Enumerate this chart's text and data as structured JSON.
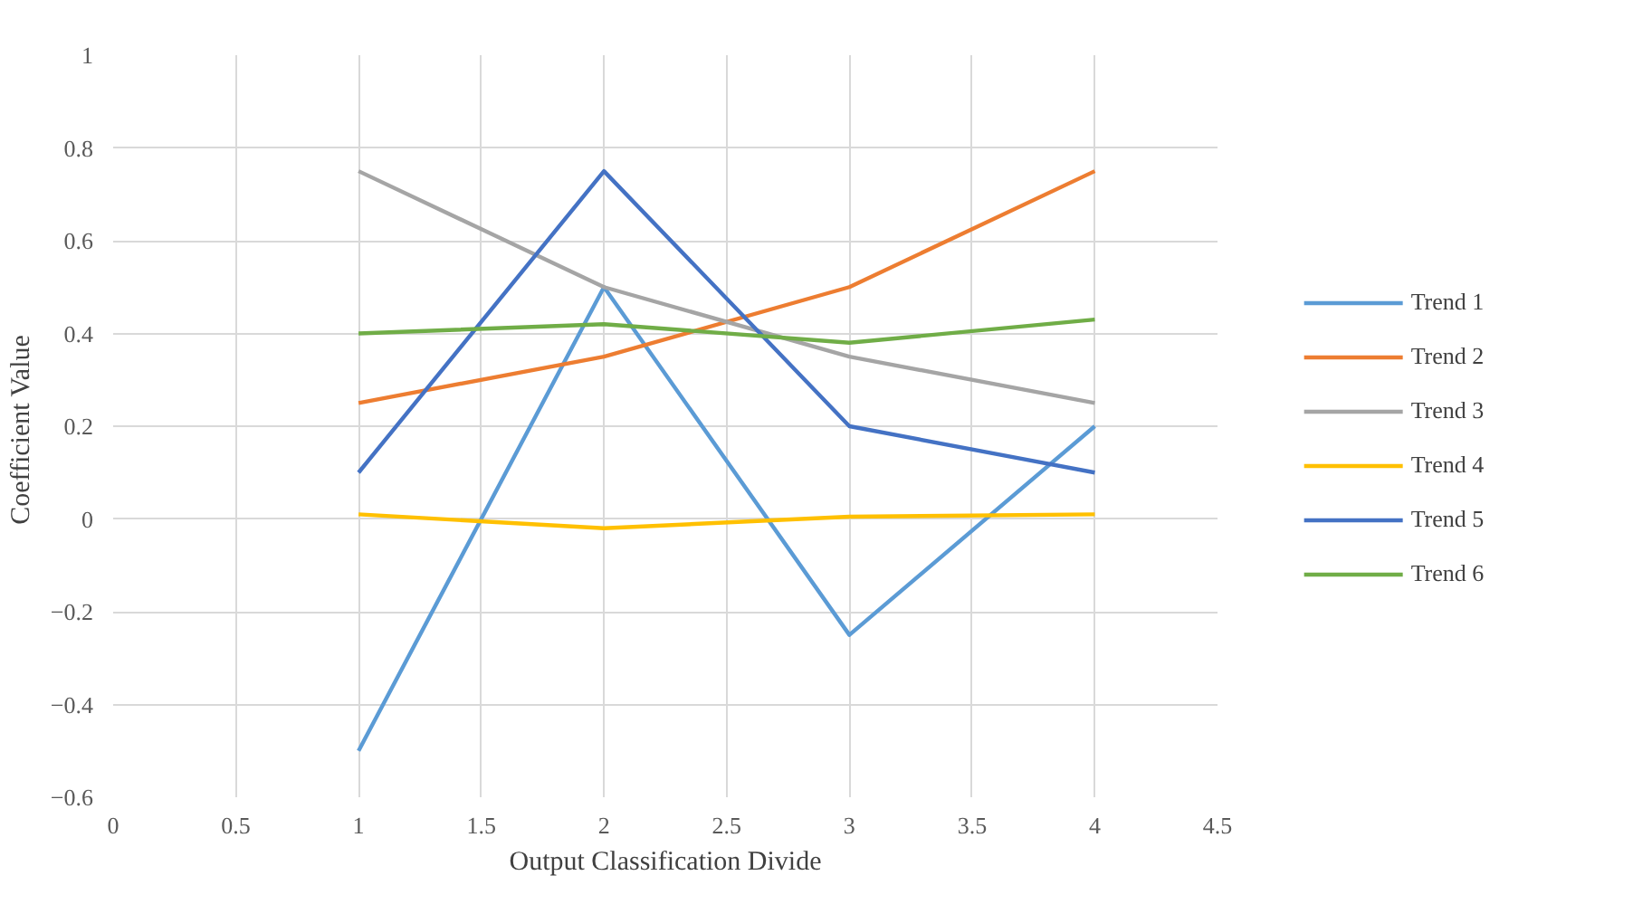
{
  "chart_data": {
    "type": "line",
    "xlabel": "Output Classification Divide",
    "ylabel": "Coefficient  Value",
    "x": [
      1,
      2,
      3,
      4
    ],
    "series": [
      {
        "name": "Trend 1",
        "color": "#5b9bd5",
        "values": [
          -0.5,
          0.5,
          -0.25,
          0.2
        ]
      },
      {
        "name": "Trend 2",
        "color": "#ed7d31",
        "values": [
          0.25,
          0.35,
          0.5,
          0.75
        ]
      },
      {
        "name": "Trend 3",
        "color": "#a5a5a5",
        "values": [
          0.75,
          0.5,
          0.35,
          0.25
        ]
      },
      {
        "name": "Trend 4",
        "color": "#ffc000",
        "values": [
          0.01,
          -0.02,
          0.005,
          0.01
        ]
      },
      {
        "name": "Trend 5",
        "color": "#4472c4",
        "values": [
          0.1,
          0.75,
          0.2,
          0.1
        ]
      },
      {
        "name": "Trend 6",
        "color": "#70ad47",
        "values": [
          0.4,
          0.42,
          0.38,
          0.43
        ]
      }
    ],
    "xlim": [
      0,
      4.5
    ],
    "xticks": [
      0,
      0.5,
      1,
      1.5,
      2,
      2.5,
      3,
      3.5,
      4,
      4.5
    ],
    "ylim": [
      -0.6,
      1
    ],
    "yticks": [
      -0.6,
      -0.4,
      -0.2,
      0,
      0.2,
      0.4,
      0.6,
      0.8,
      1
    ],
    "grid": true,
    "legend": "right",
    "marker": "none",
    "line_style": "solid"
  }
}
